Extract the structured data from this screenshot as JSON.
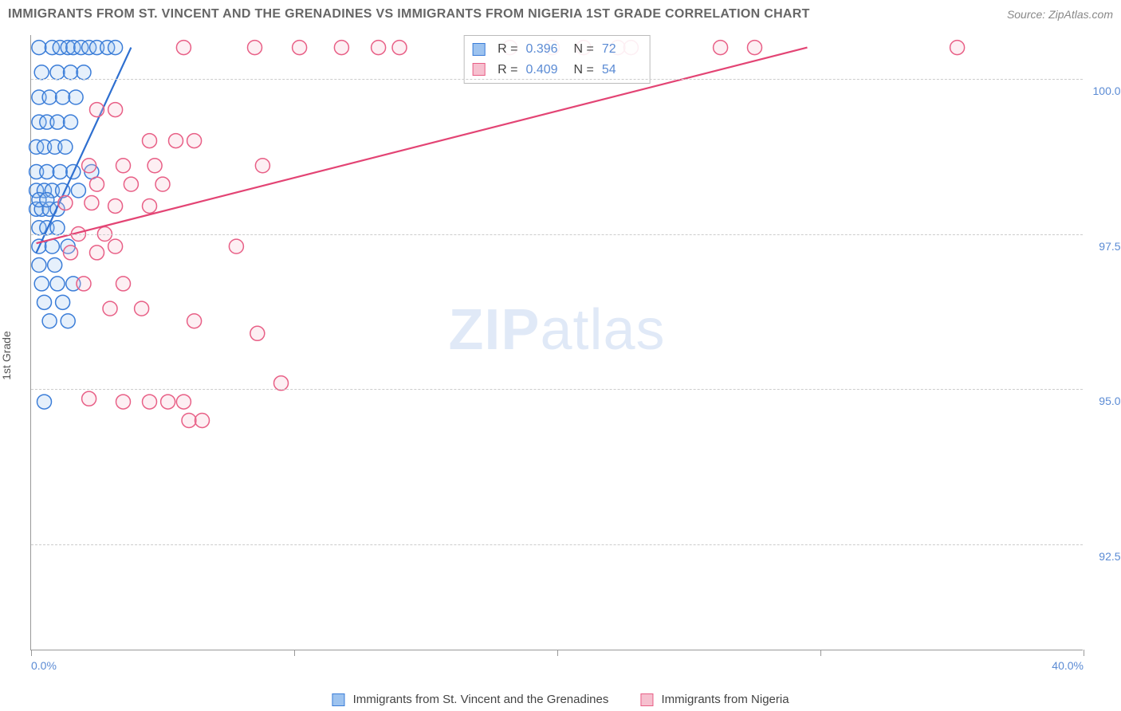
{
  "title": "IMMIGRANTS FROM ST. VINCENT AND THE GRENADINES VS IMMIGRANTS FROM NIGERIA 1ST GRADE CORRELATION CHART",
  "source": "Source: ZipAtlas.com",
  "watermark_zip": "ZIP",
  "watermark_atlas": "atlas",
  "chart": {
    "type": "scatter",
    "y_axis_label": "1st Grade",
    "xlim": [
      0,
      40
    ],
    "ylim": [
      90.8,
      100.7
    ],
    "x_ticks": [
      0,
      10,
      20,
      30,
      40
    ],
    "x_tick_labels": [
      "0.0%",
      "",
      "",
      "",
      "40.0%"
    ],
    "y_ticks": [
      92.5,
      95.0,
      97.5,
      100.0
    ],
    "y_tick_labels": [
      "92.5%",
      "95.0%",
      "97.5%",
      "100.0%"
    ],
    "grid_color": "#cccccc",
    "background_color": "#ffffff",
    "axis_color": "#999999",
    "tick_label_color": "#5b8bd4",
    "marker_radius": 9,
    "marker_stroke_width": 1.5,
    "marker_fill_opacity": 0.25,
    "line_width": 2.2,
    "series": [
      {
        "name": "Immigrants from St. Vincent and the Grenadines",
        "color_stroke": "#3b7dd8",
        "color_fill": "#9dc3ef",
        "line_color": "#2e6fd0",
        "R": "0.396",
        "N": "72",
        "trend": {
          "x1": 0.2,
          "y1": 97.2,
          "x2": 3.8,
          "y2": 100.5
        },
        "points": [
          [
            0.3,
            100.5
          ],
          [
            0.8,
            100.5
          ],
          [
            1.1,
            100.5
          ],
          [
            1.4,
            100.5
          ],
          [
            1.6,
            100.5
          ],
          [
            1.9,
            100.5
          ],
          [
            2.2,
            100.5
          ],
          [
            2.5,
            100.5
          ],
          [
            2.9,
            100.5
          ],
          [
            3.2,
            100.5
          ],
          [
            0.4,
            100.1
          ],
          [
            1.0,
            100.1
          ],
          [
            1.5,
            100.1
          ],
          [
            2.0,
            100.1
          ],
          [
            0.3,
            99.7
          ],
          [
            0.7,
            99.7
          ],
          [
            1.2,
            99.7
          ],
          [
            1.7,
            99.7
          ],
          [
            0.3,
            99.3
          ],
          [
            0.6,
            99.3
          ],
          [
            1.0,
            99.3
          ],
          [
            1.5,
            99.3
          ],
          [
            0.2,
            98.9
          ],
          [
            0.5,
            98.9
          ],
          [
            0.9,
            98.9
          ],
          [
            1.3,
            98.9
          ],
          [
            0.2,
            98.5
          ],
          [
            0.6,
            98.5
          ],
          [
            1.1,
            98.5
          ],
          [
            1.6,
            98.5
          ],
          [
            2.3,
            98.5
          ],
          [
            0.2,
            98.2
          ],
          [
            0.5,
            98.2
          ],
          [
            0.8,
            98.2
          ],
          [
            1.2,
            98.2
          ],
          [
            1.8,
            98.2
          ],
          [
            0.2,
            97.9
          ],
          [
            0.4,
            97.9
          ],
          [
            0.7,
            97.9
          ],
          [
            1.0,
            97.9
          ],
          [
            0.3,
            98.05
          ],
          [
            0.6,
            98.05
          ],
          [
            0.3,
            97.6
          ],
          [
            0.6,
            97.6
          ],
          [
            1.0,
            97.6
          ],
          [
            0.3,
            97.3
          ],
          [
            0.8,
            97.3
          ],
          [
            1.4,
            97.3
          ],
          [
            0.3,
            97.0
          ],
          [
            0.9,
            97.0
          ],
          [
            0.4,
            96.7
          ],
          [
            1.0,
            96.7
          ],
          [
            1.6,
            96.7
          ],
          [
            0.5,
            96.4
          ],
          [
            1.2,
            96.4
          ],
          [
            0.7,
            96.1
          ],
          [
            1.4,
            96.1
          ],
          [
            0.5,
            94.8
          ]
        ]
      },
      {
        "name": "Immigrants from Nigeria",
        "color_stroke": "#e85f86",
        "color_fill": "#f6c0cf",
        "line_color": "#e34474",
        "R": "0.409",
        "N": "54",
        "trend": {
          "x1": 0.2,
          "y1": 97.35,
          "x2": 29.5,
          "y2": 100.5
        },
        "points": [
          [
            5.8,
            100.5
          ],
          [
            8.5,
            100.5
          ],
          [
            10.2,
            100.5
          ],
          [
            11.8,
            100.5
          ],
          [
            13.2,
            100.5
          ],
          [
            14.0,
            100.5
          ],
          [
            18.2,
            100.5
          ],
          [
            19.8,
            100.5
          ],
          [
            21.0,
            100.5
          ],
          [
            22.3,
            100.5
          ],
          [
            22.8,
            100.5
          ],
          [
            26.2,
            100.5
          ],
          [
            27.5,
            100.5
          ],
          [
            35.2,
            100.5
          ],
          [
            2.5,
            99.5
          ],
          [
            3.2,
            99.5
          ],
          [
            4.5,
            99.0
          ],
          [
            5.5,
            99.0
          ],
          [
            6.2,
            99.0
          ],
          [
            2.2,
            98.6
          ],
          [
            3.5,
            98.6
          ],
          [
            4.7,
            98.6
          ],
          [
            8.8,
            98.6
          ],
          [
            2.5,
            98.3
          ],
          [
            3.8,
            98.3
          ],
          [
            5.0,
            98.3
          ],
          [
            1.3,
            98.0
          ],
          [
            2.3,
            98.0
          ],
          [
            3.2,
            97.95
          ],
          [
            4.5,
            97.95
          ],
          [
            1.8,
            97.5
          ],
          [
            2.8,
            97.5
          ],
          [
            1.5,
            97.2
          ],
          [
            2.5,
            97.2
          ],
          [
            3.2,
            97.3
          ],
          [
            7.8,
            97.3
          ],
          [
            2.0,
            96.7
          ],
          [
            3.5,
            96.7
          ],
          [
            3.0,
            96.3
          ],
          [
            4.2,
            96.3
          ],
          [
            6.2,
            96.1
          ],
          [
            8.6,
            95.9
          ],
          [
            9.5,
            95.1
          ],
          [
            2.2,
            94.85
          ],
          [
            3.5,
            94.8
          ],
          [
            4.5,
            94.8
          ],
          [
            5.2,
            94.8
          ],
          [
            5.8,
            94.8
          ],
          [
            6.0,
            94.5
          ],
          [
            6.5,
            94.5
          ]
        ]
      }
    ]
  },
  "legend": {
    "series1_label": "Immigrants from St. Vincent and the Grenadines",
    "series2_label": "Immigrants from Nigeria"
  },
  "stats_labels": {
    "R_prefix": "R =",
    "N_prefix": "N ="
  }
}
